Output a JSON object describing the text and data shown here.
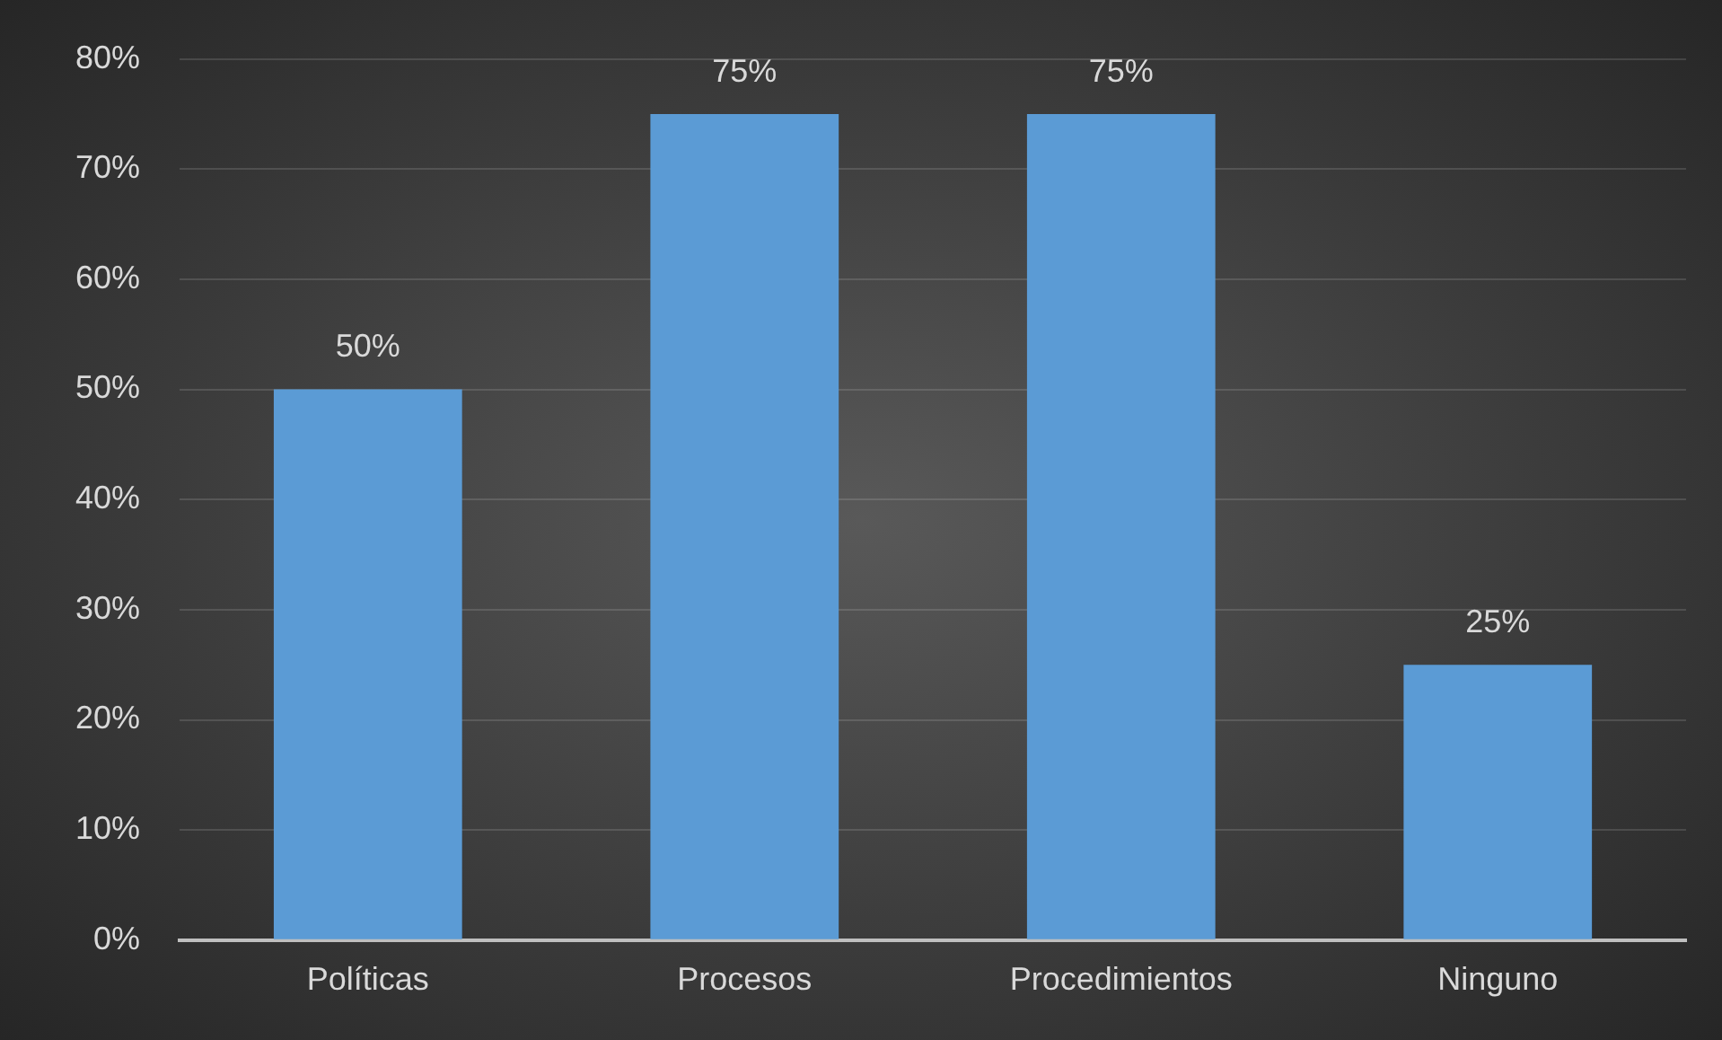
{
  "chart_data": {
    "type": "bar",
    "categories": [
      "Políticas",
      "Procesos",
      "Procedimientos",
      "Ninguno"
    ],
    "values": [
      50,
      75,
      75,
      25
    ],
    "value_labels": [
      "50%",
      "75%",
      "75%",
      "25%"
    ],
    "color": "#5b9bd5",
    "ylim": [
      0,
      80
    ],
    "yticks": [
      {
        "value": 0,
        "label": "0%"
      },
      {
        "value": 10,
        "label": "10%"
      },
      {
        "value": 20,
        "label": "20%"
      },
      {
        "value": 30,
        "label": "30%"
      },
      {
        "value": 40,
        "label": "40%"
      },
      {
        "value": 50,
        "label": "50%"
      },
      {
        "value": 60,
        "label": "60%"
      },
      {
        "value": 70,
        "label": "70%"
      },
      {
        "value": 80,
        "label": "80%"
      }
    ],
    "grid": "y",
    "legend": false
  }
}
